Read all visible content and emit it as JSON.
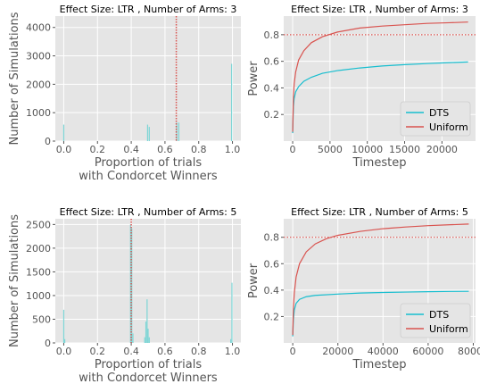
{
  "chart_data": [
    {
      "type": "histogram",
      "title": "Effect Size: LTR , Number of Arms: 3",
      "xlabel": "Proportion of trials\nwith Condorcet Winners",
      "ylabel": "Number of Simulations",
      "xlim": [
        -0.05,
        1.05
      ],
      "ylim": [
        0,
        4400
      ],
      "xticks": [
        0.0,
        0.2,
        0.4,
        0.6,
        0.8,
        1.0
      ],
      "xticklabels": [
        "0.0",
        "0.2",
        "0.4",
        "0.6",
        "0.8",
        "1.0"
      ],
      "yticks": [
        0,
        1000,
        2000,
        3000,
        4000
      ],
      "yticklabels": [
        "0",
        "1000",
        "2000",
        "3000",
        "4000"
      ],
      "grid": true,
      "bar_color": "#7fd6d6",
      "bins": [
        {
          "x": 0.0,
          "count": 580
        },
        {
          "x": 0.497,
          "count": 580
        },
        {
          "x": 0.507,
          "count": 500
        },
        {
          "x": 0.67,
          "count": 650
        },
        {
          "x": 0.682,
          "count": 650
        },
        {
          "x": 0.995,
          "count": 2720
        }
      ],
      "vline": {
        "x": 0.667,
        "color": "#d9534f",
        "style": "dotted"
      }
    },
    {
      "type": "line",
      "title": "Effect Size: LTR , Number of Arms: 3",
      "xlabel": "Timestep",
      "ylabel": "Power",
      "xlim": [
        -1200,
        24500
      ],
      "ylim": [
        0.0,
        0.94
      ],
      "xticks": [
        0,
        5000,
        10000,
        15000,
        20000
      ],
      "xticklabels": [
        "0",
        "5000",
        "10000",
        "15000",
        "20000"
      ],
      "yticks": [
        0.2,
        0.4,
        0.6,
        0.8
      ],
      "yticklabels": [
        "0.2",
        "0.4",
        "0.6",
        "0.8"
      ],
      "grid": true,
      "legend": "bottom-right",
      "series": [
        {
          "name": "DTS",
          "color": "#17becf",
          "x": [
            0,
            100,
            200,
            400,
            800,
            1500,
            2500,
            4000,
            6000,
            9000,
            12000,
            15000,
            18000,
            21000,
            23500
          ],
          "y": [
            0.06,
            0.26,
            0.32,
            0.37,
            0.41,
            0.45,
            0.48,
            0.51,
            0.53,
            0.55,
            0.565,
            0.575,
            0.583,
            0.59,
            0.595
          ]
        },
        {
          "name": "Uniform",
          "color": "#d9534f",
          "x": [
            0,
            100,
            200,
            400,
            800,
            1500,
            2500,
            4000,
            6000,
            9000,
            12000,
            15000,
            18000,
            21000,
            23500
          ],
          "y": [
            0.07,
            0.34,
            0.43,
            0.52,
            0.61,
            0.68,
            0.74,
            0.785,
            0.82,
            0.85,
            0.865,
            0.875,
            0.885,
            0.89,
            0.895
          ]
        }
      ],
      "hline": {
        "y": 0.8,
        "color": "#d9534f",
        "style": "dotted"
      }
    },
    {
      "type": "histogram",
      "title": "Effect Size: LTR , Number of Arms: 5",
      "xlabel": "Proportion of trials\nwith Condorcet Winners",
      "ylabel": "Number of Simulations",
      "xlim": [
        -0.05,
        1.05
      ],
      "ylim": [
        0,
        2620
      ],
      "xticks": [
        0.0,
        0.2,
        0.4,
        0.6,
        0.8,
        1.0
      ],
      "xticklabels": [
        "0.0",
        "0.2",
        "0.4",
        "0.6",
        "0.8",
        "1.0"
      ],
      "yticks": [
        0,
        500,
        1000,
        1500,
        2000,
        2500
      ],
      "yticklabels": [
        "0",
        "500",
        "1000",
        "1500",
        "2000",
        "2500"
      ],
      "grid": true,
      "bar_color": "#7fd6d6",
      "bins": [
        {
          "x": 0.0,
          "count": 700
        },
        {
          "x": 0.006,
          "count": 80
        },
        {
          "x": 0.396,
          "count": 2500
        },
        {
          "x": 0.403,
          "count": 2420
        },
        {
          "x": 0.41,
          "count": 200
        },
        {
          "x": 0.48,
          "count": 120
        },
        {
          "x": 0.487,
          "count": 450
        },
        {
          "x": 0.494,
          "count": 920
        },
        {
          "x": 0.5,
          "count": 300
        },
        {
          "x": 0.507,
          "count": 120
        },
        {
          "x": 0.99,
          "count": 80
        },
        {
          "x": 0.997,
          "count": 1270
        }
      ],
      "vline": {
        "x": 0.4,
        "color": "#d9534f",
        "style": "dotted"
      }
    },
    {
      "type": "line",
      "title": "Effect Size: LTR , Number of Arms: 5",
      "xlabel": "Timestep",
      "ylabel": "Power",
      "xlim": [
        -4000,
        81000
      ],
      "ylim": [
        0.0,
        0.94
      ],
      "xticks": [
        0,
        20000,
        40000,
        60000,
        80000
      ],
      "xticklabels": [
        "0",
        "20000",
        "40000",
        "60000",
        "80000"
      ],
      "yticks": [
        0.2,
        0.4,
        0.6,
        0.8
      ],
      "yticklabels": [
        "0.2",
        "0.4",
        "0.6",
        "0.8"
      ],
      "grid": true,
      "legend": "bottom-right",
      "series": [
        {
          "name": "DTS",
          "color": "#17becf",
          "x": [
            0,
            300,
            700,
            1500,
            3000,
            6000,
            10000,
            20000,
            30000,
            40000,
            50000,
            60000,
            70000,
            78000
          ],
          "y": [
            0.05,
            0.18,
            0.25,
            0.3,
            0.33,
            0.35,
            0.36,
            0.37,
            0.378,
            0.382,
            0.385,
            0.388,
            0.39,
            0.391
          ]
        },
        {
          "name": "Uniform",
          "color": "#d9534f",
          "x": [
            0,
            300,
            700,
            1500,
            3000,
            6000,
            10000,
            15000,
            20000,
            30000,
            40000,
            50000,
            60000,
            70000,
            78000
          ],
          "y": [
            0.06,
            0.27,
            0.38,
            0.5,
            0.6,
            0.69,
            0.75,
            0.79,
            0.815,
            0.845,
            0.865,
            0.878,
            0.888,
            0.895,
            0.9
          ]
        }
      ],
      "hline": {
        "y": 0.8,
        "color": "#d9534f",
        "style": "dotted"
      }
    }
  ]
}
